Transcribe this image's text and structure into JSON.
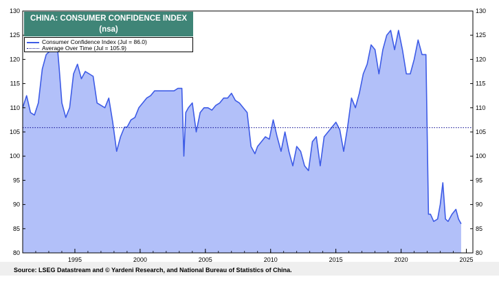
{
  "chart_data": {
    "type": "area",
    "title": "CHINA: CONSUMER CONFIDENCE INDEX",
    "subtitle": "(nsa)",
    "ylim": [
      80,
      130
    ],
    "yticks": [
      80,
      85,
      90,
      95,
      100,
      105,
      110,
      115,
      120,
      125,
      130
    ],
    "xlim": [
      1991.0,
      2025.5
    ],
    "xticks": [
      1995,
      2000,
      2005,
      2010,
      2015,
      2020,
      2025
    ],
    "grid": false,
    "legend_position": "top-left",
    "series": [
      {
        "name": "Consumer Confidence Index (Jul = 86.0)",
        "color": "#3d5be6",
        "fill": "#b2c0f9",
        "x": [
          1991.0,
          1991.3,
          1991.6,
          1991.9,
          1992.2,
          1992.5,
          1992.8,
          1993.0,
          1993.3,
          1993.6,
          1993.8,
          1994.0,
          1994.3,
          1994.6,
          1994.9,
          1995.2,
          1995.5,
          1995.8,
          1996.1,
          1996.4,
          1996.7,
          1997.0,
          1997.3,
          1997.6,
          1997.9,
          1998.2,
          1998.5,
          1998.8,
          1999.0,
          1999.3,
          1999.6,
          1999.9,
          2000.2,
          2000.5,
          2000.8,
          2001.1,
          2001.4,
          2001.7,
          2002.0,
          2002.3,
          2002.6,
          2002.9,
          2003.2,
          2003.35,
          2003.5,
          2003.7,
          2004.0,
          2004.3,
          2004.6,
          2004.9,
          2005.2,
          2005.5,
          2005.8,
          2006.1,
          2006.4,
          2006.7,
          2007.0,
          2007.3,
          2007.6,
          2007.9,
          2008.2,
          2008.5,
          2008.8,
          2009.0,
          2009.3,
          2009.6,
          2009.9,
          2010.2,
          2010.5,
          2010.8,
          2011.1,
          2011.4,
          2011.7,
          2012.0,
          2012.3,
          2012.6,
          2012.9,
          2013.2,
          2013.5,
          2013.8,
          2014.1,
          2014.4,
          2014.7,
          2015.0,
          2015.3,
          2015.6,
          2015.9,
          2016.2,
          2016.5,
          2016.8,
          2017.1,
          2017.4,
          2017.7,
          2018.0,
          2018.3,
          2018.6,
          2018.9,
          2019.2,
          2019.5,
          2019.8,
          2020.1,
          2020.4,
          2020.7,
          2021.0,
          2021.3,
          2021.6,
          2021.9,
          2022.1,
          2022.25,
          2022.5,
          2022.8,
          2023.0,
          2023.2,
          2023.4,
          2023.6,
          2023.9,
          2024.2,
          2024.4,
          2024.6
        ],
        "values": [
          110,
          112.5,
          109,
          108.5,
          111,
          118,
          121,
          121.5,
          123,
          124.5,
          118,
          111,
          108,
          110,
          117,
          119,
          116,
          117.5,
          117,
          116.5,
          111,
          110.5,
          110,
          112,
          107,
          101,
          104,
          106,
          106,
          107.5,
          108,
          110,
          111,
          112,
          112.5,
          113.5,
          113.5,
          113.5,
          113.5,
          113.5,
          113.5,
          114,
          114,
          100,
          109,
          110,
          111,
          105,
          109,
          110,
          110,
          109.5,
          110.5,
          111,
          112,
          112,
          113,
          111.5,
          111,
          110,
          109,
          102,
          100.5,
          102,
          103,
          104,
          103.5,
          107.5,
          104,
          101,
          105,
          101,
          98,
          102,
          101,
          98,
          97,
          103,
          104,
          98,
          104,
          105,
          106,
          107,
          105.5,
          101,
          106,
          112,
          110,
          113,
          117,
          119,
          123,
          122,
          117,
          122,
          125,
          126,
          122,
          126,
          122,
          117,
          117,
          120,
          124,
          121,
          121,
          88,
          88,
          86.5,
          87,
          90,
          94.5,
          87,
          86.5,
          88,
          89,
          87,
          86.0
        ]
      },
      {
        "name": "Average Over Time (Jul = 105.9)",
        "color": "#1a1a99",
        "values": [
          105.9
        ]
      }
    ]
  },
  "source_note": "Source: LSEG Datastream and © Yardeni Research, and National Bureau of Statistics of China."
}
